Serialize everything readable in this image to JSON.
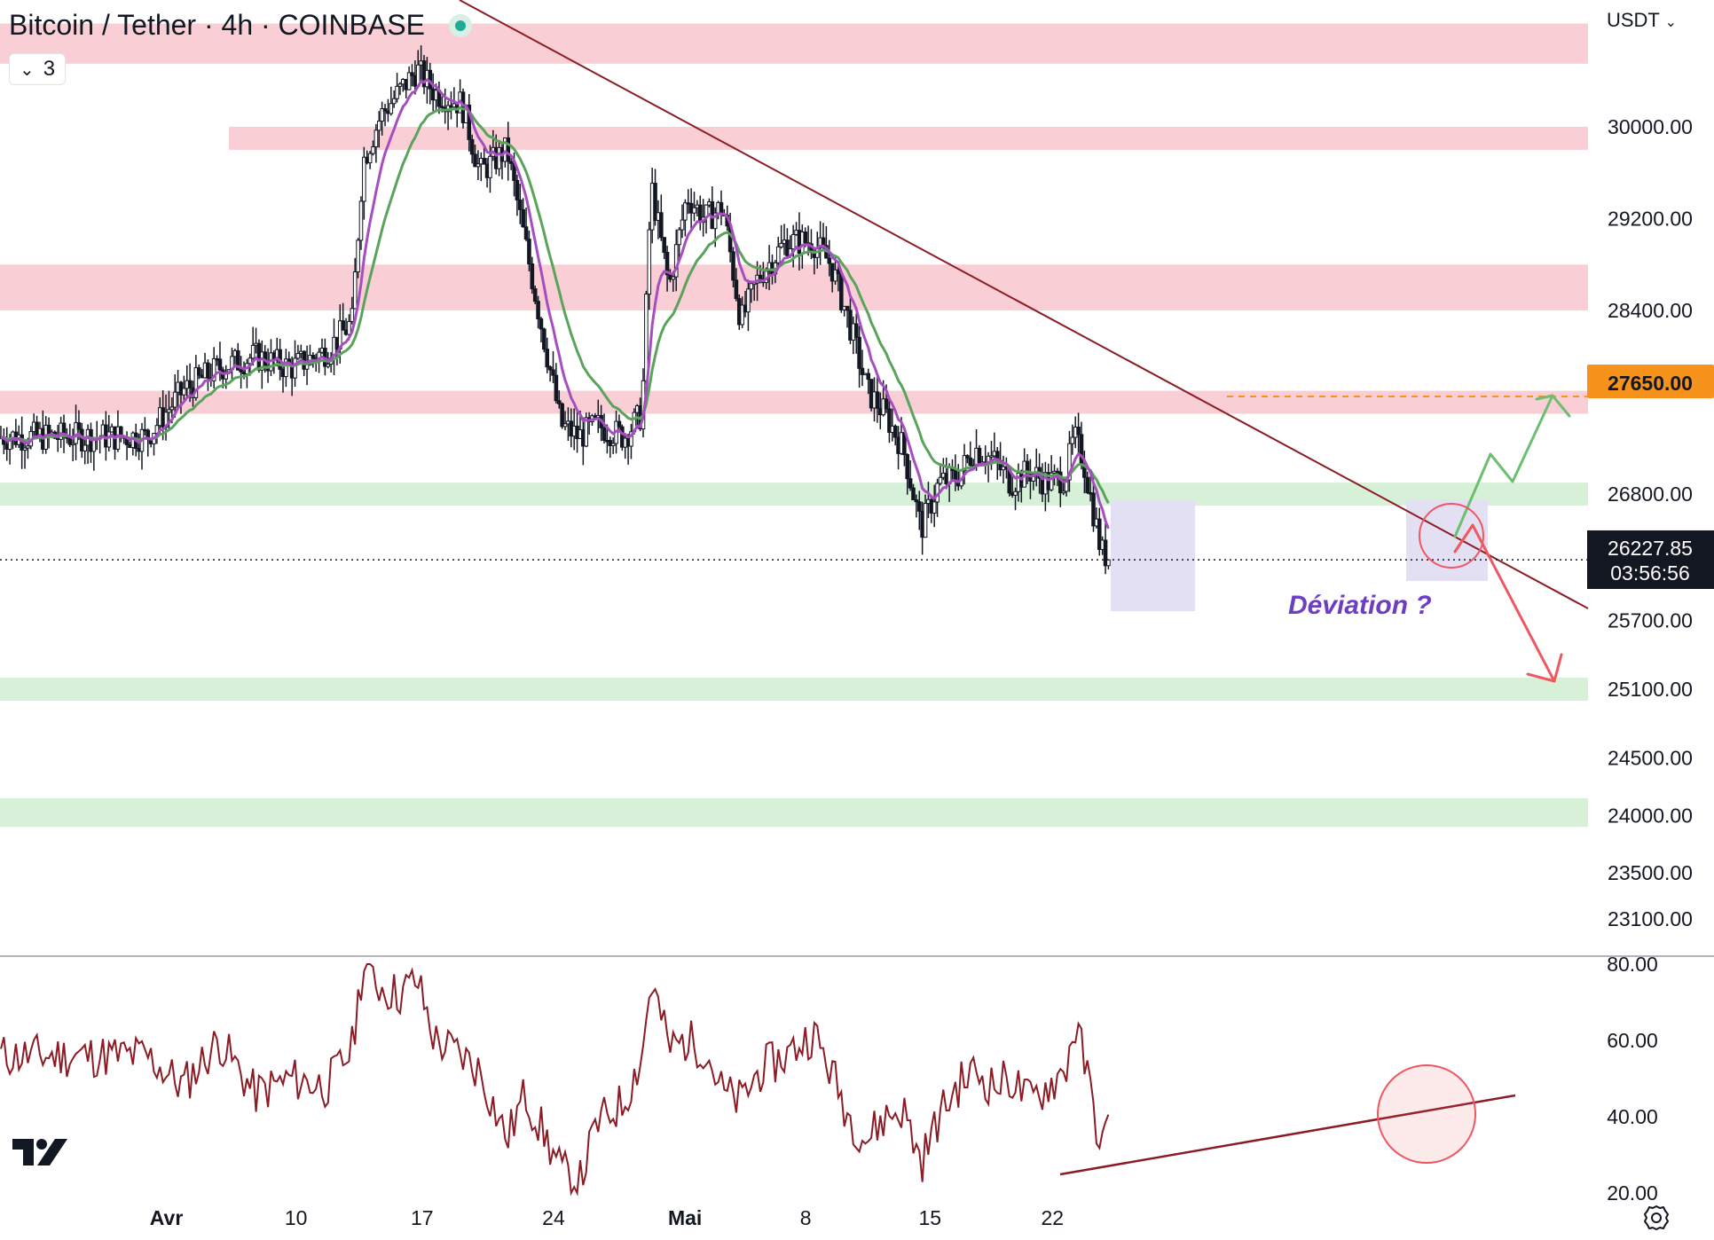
{
  "header": {
    "title": "Bitcoin / Tether · 4h · COINBASE",
    "indicator_count": "3",
    "currency": "USDT"
  },
  "price_axis": {
    "ticks": [
      "30000.00",
      "29200.00",
      "28400.00",
      "26800.00",
      "25700.00",
      "25100.00",
      "24500.00",
      "24000.00",
      "23500.00",
      "23100.00"
    ],
    "tick_values": [
      30000,
      29200,
      28400,
      26800,
      25700,
      25100,
      24500,
      24000,
      23500,
      23100
    ]
  },
  "rsi_axis": {
    "ticks": [
      "80.00",
      "60.00",
      "40.00",
      "20.00"
    ],
    "tick_values": [
      80,
      60,
      40,
      20
    ]
  },
  "time_axis": {
    "labels": [
      "Avr",
      "10",
      "17",
      "24",
      "Mai",
      "8",
      "15",
      "22"
    ]
  },
  "price_badges": {
    "target_label": "27650.00",
    "last_price": "26227.85",
    "countdown": "03:56:56"
  },
  "annotation": {
    "text": "Déviation ?"
  },
  "colors": {
    "resistance_zone": "#f9cfd5",
    "support_zone": "#d7f0d8",
    "deviation_box": "#e3e0f3",
    "candle": "#131722",
    "ma_fast": "#a64ec0",
    "ma_slow": "#5aa35b",
    "trendline": "#8b1c25",
    "rsi_line": "#8b1c25",
    "up_arrow": "#6dbf6f",
    "down_arrow": "#ef5761",
    "target_badge": "#f7931a",
    "circle": "#ef5761",
    "annotation_text": "#6b3ec2"
  },
  "chart_data": {
    "type": "candlestick",
    "title": "Bitcoin / Tether · 4h · COINBASE",
    "x_labels": [
      "Avr",
      "10",
      "17",
      "24",
      "Mai",
      "8",
      "15",
      "22"
    ],
    "ylim": [
      22900,
      31000
    ],
    "price_path": [
      {
        "day": -2,
        "price": 27300
      },
      {
        "day": 0,
        "price": 27700
      },
      {
        "day": 2,
        "price": 27900
      },
      {
        "day": 4,
        "price": 28000
      },
      {
        "day": 6,
        "price": 27900
      },
      {
        "day": 8,
        "price": 28050
      },
      {
        "day": 9.4,
        "price": 28300
      },
      {
        "day": 10,
        "price": 29700
      },
      {
        "day": 11,
        "price": 30100
      },
      {
        "day": 12,
        "price": 30300
      },
      {
        "day": 13,
        "price": 30500
      },
      {
        "day": 14,
        "price": 30300
      },
      {
        "day": 15.5,
        "price": 30200
      },
      {
        "day": 16.5,
        "price": 29600
      },
      {
        "day": 18,
        "price": 29800
      },
      {
        "day": 19,
        "price": 29000
      },
      {
        "day": 20,
        "price": 28200
      },
      {
        "day": 21,
        "price": 27400
      },
      {
        "day": 22,
        "price": 27300
      },
      {
        "day": 23,
        "price": 27400
      },
      {
        "day": 24.5,
        "price": 27300
      },
      {
        "day": 25.5,
        "price": 27500
      },
      {
        "day": 26,
        "price": 29500
      },
      {
        "day": 27,
        "price": 28600
      },
      {
        "day": 28,
        "price": 29400
      },
      {
        "day": 29,
        "price": 29200
      },
      {
        "day": 30,
        "price": 29300
      },
      {
        "day": 31,
        "price": 28300
      },
      {
        "day": 32,
        "price": 28700
      },
      {
        "day": 33.5,
        "price": 29000
      },
      {
        "day": 35,
        "price": 29000
      },
      {
        "day": 36,
        "price": 28800
      },
      {
        "day": 37,
        "price": 28300
      },
      {
        "day": 38,
        "price": 27700
      },
      {
        "day": 39,
        "price": 27500
      },
      {
        "day": 40,
        "price": 27200
      },
      {
        "day": 41,
        "price": 26500
      },
      {
        "day": 42,
        "price": 26900
      },
      {
        "day": 43,
        "price": 26950
      },
      {
        "day": 44,
        "price": 27200
      },
      {
        "day": 45,
        "price": 27100
      },
      {
        "day": 46,
        "price": 26900
      },
      {
        "day": 47,
        "price": 27000
      },
      {
        "day": 48,
        "price": 26900
      },
      {
        "day": 49,
        "price": 26950
      },
      {
        "day": 49.5,
        "price": 27300
      },
      {
        "day": 50,
        "price": 27100
      },
      {
        "day": 51,
        "price": 26300
      },
      {
        "day": 51.5,
        "price": 26227.85
      }
    ],
    "series": [
      {
        "name": "",
        "type": "moving-average-fast",
        "color": "#a64ec0"
      },
      {
        "name": "",
        "type": "moving-average-slow",
        "color": "#5aa35b"
      }
    ],
    "zones": {
      "resistance": [
        [
          30550,
          30900
        ],
        [
          29800,
          30000
        ],
        [
          28400,
          28800
        ],
        [
          27500,
          27700
        ]
      ],
      "support": [
        [
          26700,
          26900
        ],
        [
          25000,
          25200
        ],
        [
          23900,
          24150
        ]
      ]
    },
    "levels": {
      "target": 27650,
      "last": 26227.85
    },
    "rsi": {
      "ylim": [
        20,
        80
      ],
      "points": [
        {
          "day": -2,
          "value": 56
        },
        {
          "day": 0,
          "value": 48
        },
        {
          "day": 2,
          "value": 60
        },
        {
          "day": 4,
          "value": 46
        },
        {
          "day": 6,
          "value": 50
        },
        {
          "day": 8,
          "value": 48
        },
        {
          "day": 9.4,
          "value": 58
        },
        {
          "day": 10,
          "value": 80
        },
        {
          "day": 11,
          "value": 74
        },
        {
          "day": 12,
          "value": 72
        },
        {
          "day": 13,
          "value": 76
        },
        {
          "day": 14,
          "value": 60
        },
        {
          "day": 15.5,
          "value": 56
        },
        {
          "day": 16.5,
          "value": 52
        },
        {
          "day": 18,
          "value": 34
        },
        {
          "day": 19,
          "value": 46
        },
        {
          "day": 20,
          "value": 36
        },
        {
          "day": 21,
          "value": 26
        },
        {
          "day": 22,
          "value": 22
        },
        {
          "day": 23,
          "value": 38
        },
        {
          "day": 24.5,
          "value": 44
        },
        {
          "day": 25.5,
          "value": 56
        },
        {
          "day": 26,
          "value": 76
        },
        {
          "day": 27,
          "value": 58
        },
        {
          "day": 28,
          "value": 60
        },
        {
          "day": 29,
          "value": 58
        },
        {
          "day": 30,
          "value": 46
        },
        {
          "day": 31,
          "value": 44
        },
        {
          "day": 32,
          "value": 52
        },
        {
          "day": 33.5,
          "value": 56
        },
        {
          "day": 35,
          "value": 62
        },
        {
          "day": 36,
          "value": 52
        },
        {
          "day": 37,
          "value": 40
        },
        {
          "day": 38,
          "value": 34
        },
        {
          "day": 39,
          "value": 40
        },
        {
          "day": 40,
          "value": 42
        },
        {
          "day": 41,
          "value": 28
        },
        {
          "day": 42,
          "value": 40
        },
        {
          "day": 43,
          "value": 48
        },
        {
          "day": 44,
          "value": 52
        },
        {
          "day": 45,
          "value": 48
        },
        {
          "day": 46,
          "value": 50
        },
        {
          "day": 47,
          "value": 44
        },
        {
          "day": 48,
          "value": 48
        },
        {
          "day": 49,
          "value": 52
        },
        {
          "day": 49.5,
          "value": 64
        },
        {
          "day": 50,
          "value": 56
        },
        {
          "day": 51,
          "value": 32
        },
        {
          "day": 51.5,
          "value": 38
        }
      ]
    }
  }
}
